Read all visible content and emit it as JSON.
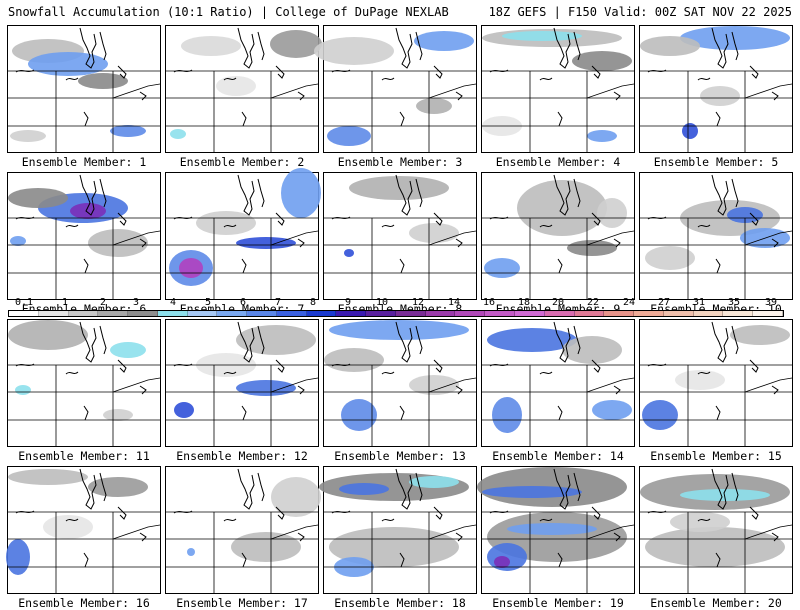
{
  "header": {
    "left": "Snowfall Accumulation (10:1 Ratio) | College of DuPage NEXLAB",
    "right": "18Z GEFS | F150 Valid: 00Z SAT NOV 22 2025"
  },
  "members": [
    {
      "label": "Ensemble Member: 1",
      "snow": [
        [
          40,
          25,
          36,
          12,
          "#bdbdbd"
        ],
        [
          60,
          38,
          40,
          12,
          "#6f9ff0"
        ],
        [
          95,
          55,
          25,
          8,
          "#8a8a8a"
        ],
        [
          120,
          105,
          18,
          6,
          "#5e8be8"
        ],
        [
          20,
          110,
          18,
          6,
          "#cfcfcf"
        ]
      ]
    },
    {
      "label": "Ensemble Member: 2",
      "snow": [
        [
          130,
          18,
          26,
          14,
          "#9a9a9a"
        ],
        [
          45,
          20,
          30,
          10,
          "#d9d9d9"
        ],
        [
          12,
          108,
          8,
          5,
          "#8de0ec"
        ],
        [
          70,
          60,
          20,
          10,
          "#e6e6e6"
        ]
      ]
    },
    {
      "label": "Ensemble Member: 3",
      "snow": [
        [
          120,
          15,
          30,
          10,
          "#6f9ff0"
        ],
        [
          30,
          25,
          40,
          14,
          "#cfcfcf"
        ],
        [
          25,
          110,
          22,
          10,
          "#5e8be8"
        ],
        [
          110,
          80,
          18,
          8,
          "#b0b0b0"
        ]
      ]
    },
    {
      "label": "Ensemble Member: 4",
      "snow": [
        [
          70,
          12,
          70,
          9,
          "#bdbdbd"
        ],
        [
          60,
          10,
          40,
          5,
          "#8de0ec"
        ],
        [
          120,
          35,
          30,
          10,
          "#8a8a8a"
        ],
        [
          120,
          110,
          15,
          6,
          "#6f9ff0"
        ],
        [
          20,
          100,
          20,
          10,
          "#e6e6e6"
        ]
      ]
    },
    {
      "label": "Ensemble Member: 5",
      "snow": [
        [
          95,
          12,
          55,
          12,
          "#6f9ff0"
        ],
        [
          30,
          20,
          30,
          10,
          "#bdbdbd"
        ],
        [
          50,
          105,
          8,
          8,
          "#3050d8"
        ],
        [
          80,
          70,
          20,
          10,
          "#cfcfcf"
        ]
      ]
    },
    {
      "label": "Ensemble Member: 6",
      "snow": [
        [
          75,
          35,
          45,
          15,
          "#4a74e0"
        ],
        [
          80,
          38,
          18,
          8,
          "#7a2fb8"
        ],
        [
          30,
          25,
          30,
          10,
          "#8a8a8a"
        ],
        [
          110,
          70,
          30,
          14,
          "#bdbdbd"
        ],
        [
          10,
          68,
          8,
          5,
          "#6f9ff0"
        ]
      ]
    },
    {
      "label": "Ensemble Member: 7",
      "snow": [
        [
          135,
          20,
          20,
          25,
          "#6f9ff0"
        ],
        [
          25,
          95,
          22,
          18,
          "#5e8be8"
        ],
        [
          25,
          95,
          12,
          10,
          "#b040c0"
        ],
        [
          100,
          70,
          30,
          6,
          "#3050d8"
        ],
        [
          60,
          50,
          30,
          12,
          "#cfcfcf"
        ]
      ]
    },
    {
      "label": "Ensemble Member: 8",
      "snow": [
        [
          75,
          15,
          50,
          12,
          "#b0b0b0"
        ],
        [
          25,
          80,
          5,
          4,
          "#3050d8"
        ],
        [
          110,
          60,
          25,
          10,
          "#cfcfcf"
        ]
      ]
    },
    {
      "label": "Ensemble Member: 9",
      "snow": [
        [
          80,
          35,
          45,
          28,
          "#bdbdbd"
        ],
        [
          20,
          95,
          18,
          10,
          "#6f9ff0"
        ],
        [
          110,
          75,
          25,
          8,
          "#8a8a8a"
        ],
        [
          130,
          40,
          15,
          15,
          "#cfcfcf"
        ]
      ]
    },
    {
      "label": "Ensemble Member: 10",
      "snow": [
        [
          90,
          45,
          50,
          18,
          "#bdbdbd"
        ],
        [
          105,
          42,
          18,
          8,
          "#4a74e0"
        ],
        [
          125,
          65,
          25,
          10,
          "#6f9ff0"
        ],
        [
          30,
          85,
          25,
          12,
          "#cfcfcf"
        ]
      ]
    },
    {
      "label": "Ensemble Member: 11",
      "snow": [
        [
          40,
          15,
          40,
          15,
          "#b0b0b0"
        ],
        [
          120,
          30,
          18,
          8,
          "#8de0ec"
        ],
        [
          15,
          70,
          8,
          5,
          "#8de0ec"
        ],
        [
          110,
          95,
          15,
          6,
          "#cfcfcf"
        ]
      ]
    },
    {
      "label": "Ensemble Member: 12",
      "snow": [
        [
          110,
          20,
          40,
          15,
          "#bdbdbd"
        ],
        [
          100,
          68,
          30,
          8,
          "#4a74e0"
        ],
        [
          18,
          90,
          10,
          8,
          "#3050d8"
        ],
        [
          60,
          45,
          30,
          12,
          "#e6e6e6"
        ]
      ]
    },
    {
      "label": "Ensemble Member: 13",
      "snow": [
        [
          75,
          10,
          70,
          10,
          "#6f9ff0"
        ],
        [
          30,
          40,
          30,
          12,
          "#bdbdbd"
        ],
        [
          35,
          95,
          18,
          16,
          "#5e8be8"
        ],
        [
          110,
          65,
          25,
          10,
          "#cfcfcf"
        ]
      ]
    },
    {
      "label": "Ensemble Member: 14",
      "snow": [
        [
          50,
          20,
          45,
          12,
          "#4a74e0"
        ],
        [
          110,
          30,
          30,
          14,
          "#bdbdbd"
        ],
        [
          25,
          95,
          15,
          18,
          "#5e8be8"
        ],
        [
          130,
          90,
          20,
          10,
          "#6f9ff0"
        ]
      ]
    },
    {
      "label": "Ensemble Member: 15",
      "snow": [
        [
          120,
          15,
          30,
          10,
          "#bdbdbd"
        ],
        [
          20,
          95,
          18,
          15,
          "#4a74e0"
        ],
        [
          60,
          60,
          25,
          10,
          "#e6e6e6"
        ]
      ]
    },
    {
      "label": "Ensemble Member: 16",
      "snow": [
        [
          40,
          10,
          40,
          8,
          "#bdbdbd"
        ],
        [
          110,
          20,
          30,
          10,
          "#9a9a9a"
        ],
        [
          10,
          90,
          12,
          18,
          "#4a74e0"
        ],
        [
          60,
          60,
          25,
          12,
          "#e6e6e6"
        ]
      ]
    },
    {
      "label": "Ensemble Member: 17",
      "snow": [
        [
          130,
          30,
          25,
          20,
          "#cfcfcf"
        ],
        [
          100,
          80,
          35,
          15,
          "#bdbdbd"
        ],
        [
          25,
          85,
          4,
          4,
          "#6f9ff0"
        ]
      ]
    },
    {
      "label": "Ensemble Member: 18",
      "snow": [
        [
          70,
          20,
          75,
          14,
          "#8a8a8a"
        ],
        [
          40,
          22,
          25,
          6,
          "#4a74e0"
        ],
        [
          110,
          15,
          25,
          6,
          "#8de0ec"
        ],
        [
          70,
          80,
          65,
          20,
          "#bdbdbd"
        ],
        [
          30,
          100,
          20,
          10,
          "#6f9ff0"
        ]
      ]
    },
    {
      "label": "Ensemble Member: 19",
      "snow": [
        [
          70,
          20,
          75,
          20,
          "#8a8a8a"
        ],
        [
          50,
          25,
          50,
          6,
          "#4a74e0"
        ],
        [
          75,
          70,
          70,
          25,
          "#9a9a9a"
        ],
        [
          70,
          62,
          45,
          6,
          "#6f9ff0"
        ],
        [
          25,
          90,
          20,
          14,
          "#4a74e0"
        ],
        [
          20,
          95,
          8,
          6,
          "#7a2fb8"
        ]
      ]
    },
    {
      "label": "Ensemble Member: 20",
      "snow": [
        [
          75,
          25,
          75,
          18,
          "#9a9a9a"
        ],
        [
          85,
          28,
          45,
          6,
          "#8de0ec"
        ],
        [
          75,
          80,
          70,
          20,
          "#bdbdbd"
        ],
        [
          60,
          55,
          30,
          10,
          "#cfcfcf"
        ]
      ]
    }
  ],
  "colorbar": {
    "ticks": [
      "0.1",
      "1",
      "2",
      "3",
      "4",
      "5",
      "6",
      "7",
      "8",
      "9",
      "10",
      "12",
      "14",
      "16",
      "18",
      "20",
      "22",
      "24",
      "27",
      "31",
      "35",
      "39"
    ],
    "colors": [
      "#ffffff",
      "#e6e6e6",
      "#c8c8c8",
      "#a8a8a8",
      "#8e8e8e",
      "#8de0ec",
      "#a6c8f5",
      "#7aa8f0",
      "#5a86e8",
      "#3a60e0",
      "#1a3ad0",
      "#3a1ab0",
      "#5a209e",
      "#7a2c96",
      "#9a3aaa",
      "#b048b8",
      "#c25ac6",
      "#d06ad4",
      "#d86cb0",
      "#e07a96",
      "#e8948a",
      "#f0ac98",
      "#f0c0ac",
      "#f4d4c0",
      "#f8e6d6",
      "#fbf2ea"
    ]
  }
}
